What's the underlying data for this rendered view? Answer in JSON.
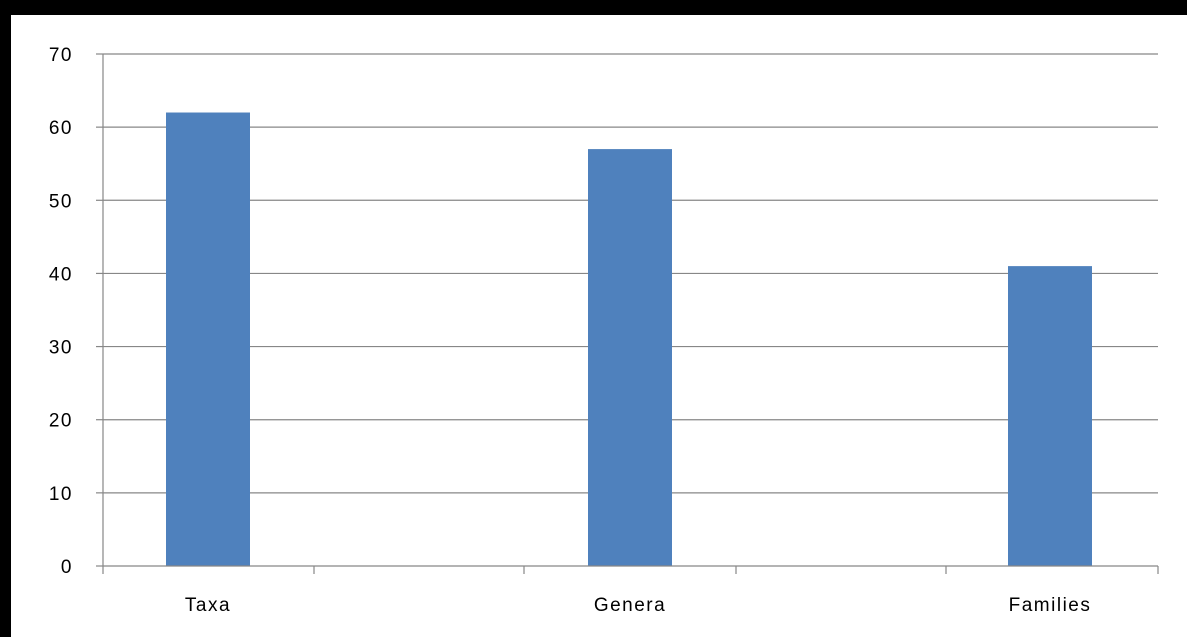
{
  "chart_data": {
    "type": "bar",
    "title": "",
    "xlabel": "",
    "ylabel": "",
    "categories": [
      "Taxa",
      "Genera",
      "Families"
    ],
    "values": [
      62,
      57,
      41
    ],
    "ylim": [
      0,
      70
    ],
    "yticks": [
      0,
      10,
      20,
      30,
      40,
      50,
      60,
      70
    ],
    "grid": true,
    "legend": "none",
    "bar_color": "#4f81bd",
    "frame_color": "#000000"
  }
}
